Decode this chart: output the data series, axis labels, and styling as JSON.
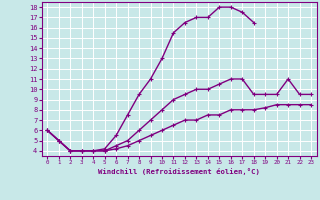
{
  "xlabel": "Windchill (Refroidissement éolien,°C)",
  "bg_color": "#c8e8e8",
  "line_color": "#800080",
  "grid_color": "#ffffff",
  "xlim": [
    -0.5,
    23.5
  ],
  "ylim": [
    3.5,
    18.5
  ],
  "xticks": [
    0,
    1,
    2,
    3,
    4,
    5,
    6,
    7,
    8,
    9,
    10,
    11,
    12,
    13,
    14,
    15,
    16,
    17,
    18,
    19,
    20,
    21,
    22,
    23
  ],
  "yticks": [
    4,
    5,
    6,
    7,
    8,
    9,
    10,
    11,
    12,
    13,
    14,
    15,
    16,
    17,
    18
  ],
  "curve1_x": [
    0,
    1,
    2,
    3,
    4,
    5,
    6,
    7,
    8,
    9,
    10,
    11,
    12,
    13,
    14,
    15,
    16,
    17,
    18
  ],
  "curve1_y": [
    6.0,
    5.0,
    4.0,
    4.0,
    4.0,
    4.2,
    5.5,
    7.5,
    9.5,
    11.0,
    13.0,
    15.5,
    16.5,
    17.0,
    17.0,
    18.0,
    18.0,
    17.5,
    16.5
  ],
  "curve2_x": [
    0,
    1,
    2,
    3,
    4,
    5,
    6,
    7,
    8,
    9,
    10,
    11,
    12,
    13,
    14,
    15,
    16,
    17,
    18,
    19,
    20,
    21,
    22,
    23
  ],
  "curve2_y": [
    6.0,
    5.0,
    4.0,
    4.0,
    4.0,
    4.0,
    4.5,
    5.0,
    6.0,
    7.0,
    8.0,
    9.0,
    9.5,
    10.0,
    10.0,
    10.5,
    11.0,
    11.0,
    9.5,
    9.5,
    9.5,
    11.0,
    9.5,
    9.5
  ],
  "curve3_x": [
    0,
    1,
    2,
    3,
    4,
    5,
    6,
    7,
    8,
    9,
    10,
    11,
    12,
    13,
    14,
    15,
    16,
    17,
    18,
    19,
    20,
    21,
    22,
    23
  ],
  "curve3_y": [
    6.0,
    5.0,
    4.0,
    4.0,
    4.0,
    4.0,
    4.2,
    4.5,
    5.0,
    5.5,
    6.0,
    6.5,
    7.0,
    7.0,
    7.5,
    7.5,
    8.0,
    8.0,
    8.0,
    8.2,
    8.5,
    8.5,
    8.5,
    8.5
  ]
}
